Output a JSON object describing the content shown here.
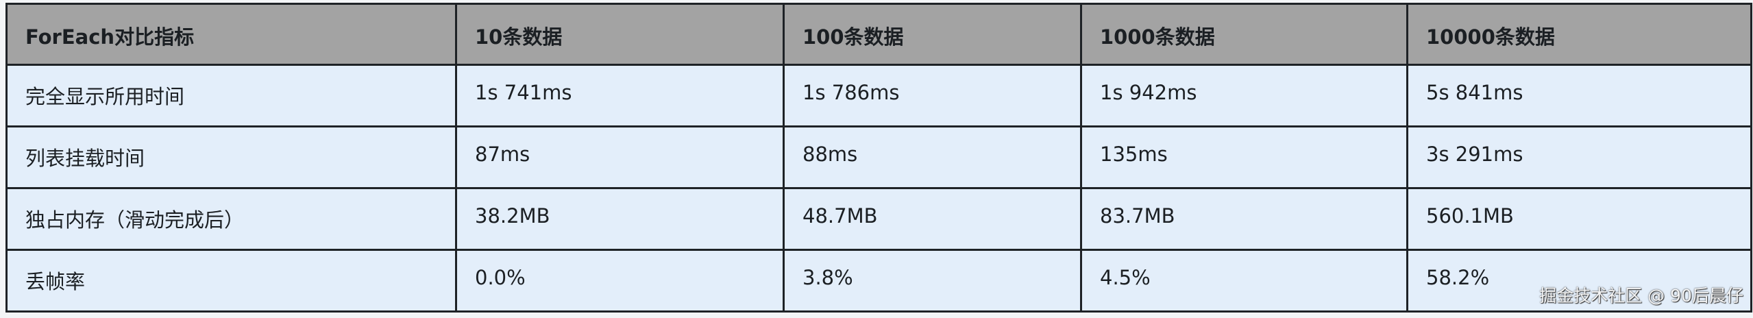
{
  "table": {
    "headers": [
      "ForEach对比指标",
      "10条数据",
      "100条数据",
      "1000条数据",
      "10000条数据"
    ],
    "rows": [
      [
        "完全显示所用时间",
        "1s 741ms",
        "1s 786ms",
        "1s 942ms",
        "5s 841ms"
      ],
      [
        "列表挂载时间",
        "87ms",
        "88ms",
        "135ms",
        "3s 291ms"
      ],
      [
        "独占内存（滑动完成后）",
        "38.2MB",
        "48.7MB",
        "83.7MB",
        "560.1MB"
      ],
      [
        "丢帧率",
        "0.0%",
        "3.8%",
        "4.5%",
        "58.2%"
      ]
    ]
  },
  "watermark": "掘金技术社区 @ 90后晨仔"
}
